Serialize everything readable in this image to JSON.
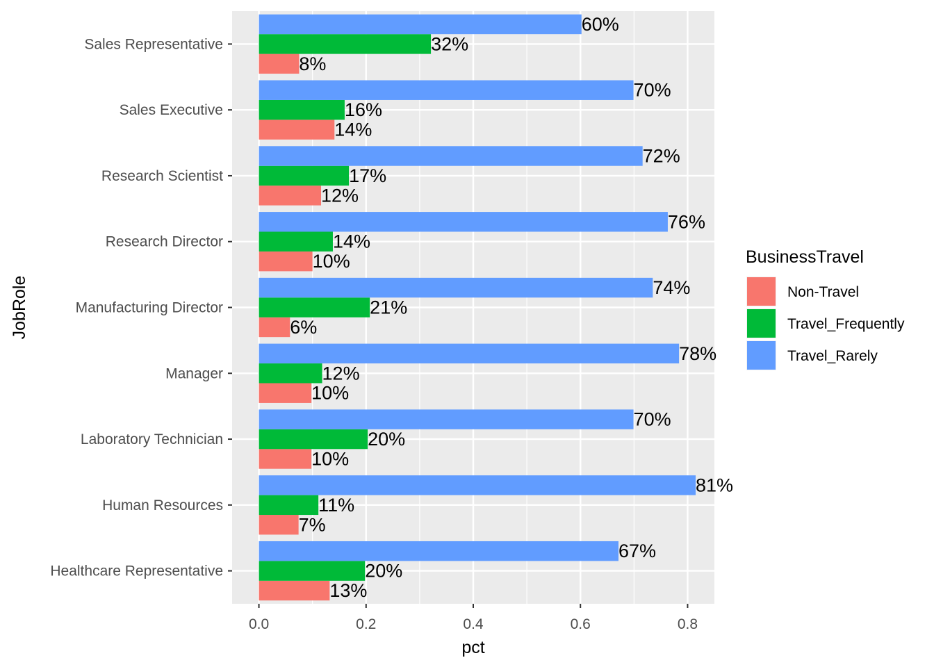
{
  "chart_data": {
    "type": "bar",
    "orientation": "horizontal",
    "xlabel": "pct",
    "ylabel": "JobRole",
    "xlim": [
      -0.05,
      0.85
    ],
    "x_ticks": [
      0.0,
      0.2,
      0.4,
      0.6,
      0.8
    ],
    "x_tick_labels": [
      "0.0",
      "0.2",
      "0.4",
      "0.6",
      "0.8"
    ],
    "categories": [
      "Sales Representative",
      "Sales Executive",
      "Research Scientist",
      "Research Director",
      "Manufacturing Director",
      "Manager",
      "Laboratory Technician",
      "Human Resources",
      "Healthcare Representative"
    ],
    "legend": {
      "title": "BusinessTravel",
      "position": "right"
    },
    "grid": true,
    "series": [
      {
        "name": "Non-Travel",
        "color": "#F8766D",
        "values": [
          0.075,
          0.141,
          0.116,
          0.1,
          0.058,
          0.098,
          0.098,
          0.074,
          0.132
        ],
        "labels": [
          "8%",
          "14%",
          "12%",
          "10%",
          "6%",
          "10%",
          "10%",
          "7%",
          "13%"
        ]
      },
      {
        "name": "Travel_Frequently",
        "color": "#00BA38",
        "values": [
          0.321,
          0.16,
          0.168,
          0.138,
          0.207,
          0.118,
          0.203,
          0.111,
          0.198
        ],
        "labels": [
          "32%",
          "16%",
          "17%",
          "14%",
          "21%",
          "12%",
          "20%",
          "11%",
          "20%"
        ]
      },
      {
        "name": "Travel_Rarely",
        "color": "#619CFF",
        "values": [
          0.602,
          0.699,
          0.716,
          0.763,
          0.735,
          0.784,
          0.699,
          0.815,
          0.671
        ],
        "labels": [
          "60%",
          "70%",
          "72%",
          "76%",
          "74%",
          "78%",
          "70%",
          "81%",
          "67%"
        ]
      }
    ]
  }
}
